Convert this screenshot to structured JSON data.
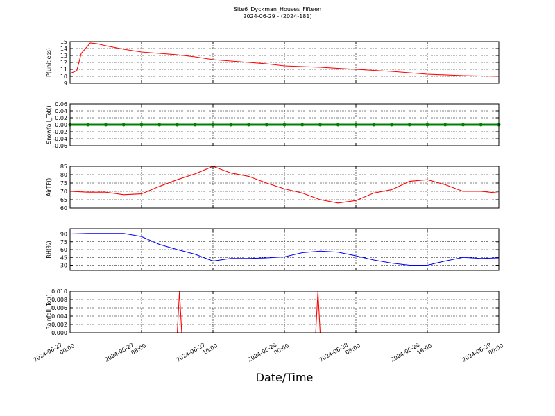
{
  "figure": {
    "title": "Site6_Dyckman_Houses_Fifteen",
    "subtitle": "2024-06-29 - (2024-181)",
    "xlabel": "Date/Time"
  },
  "chart_data": [
    {
      "type": "line",
      "ylabel": "P(unitless)",
      "xlim": [
        "2024-06-27 00:00",
        "2024-06-29 00:00"
      ],
      "xticks": [
        "2024-06-27 00:00",
        "2024-06-27 08:00",
        "2024-06-27 16:00",
        "2024-06-28 00:00",
        "2024-06-28 08:00",
        "2024-06-28 16:00",
        "2024-06-29 00:00"
      ],
      "ylim": [
        9,
        15
      ],
      "yticks": [
        9,
        10,
        11,
        12,
        13,
        14,
        15
      ],
      "grid": true,
      "x": [
        "2024-06-27 00:00",
        "2024-06-27 00:45",
        "2024-06-27 01:15",
        "2024-06-27 02:00",
        "2024-06-27 02:15",
        "2024-06-27 03:00",
        "2024-06-27 04:00",
        "2024-06-27 06:00",
        "2024-06-27 08:00",
        "2024-06-27 10:00",
        "2024-06-27 12:00",
        "2024-06-27 14:00",
        "2024-06-27 16:00",
        "2024-06-27 18:00",
        "2024-06-27 20:00",
        "2024-06-27 22:00",
        "2024-06-28 00:00",
        "2024-06-28 04:00",
        "2024-06-28 08:00",
        "2024-06-28 12:00",
        "2024-06-28 16:00",
        "2024-06-28 20:00",
        "2024-06-29 00:00"
      ],
      "series": [
        {
          "name": "P",
          "color": "#ff0000",
          "values": [
            10.4,
            10.8,
            13.3,
            14.4,
            14.8,
            14.7,
            14.4,
            13.9,
            13.5,
            13.3,
            13.1,
            12.8,
            12.4,
            12.2,
            12.0,
            11.8,
            11.5,
            11.3,
            11.0,
            10.7,
            10.3,
            10.1,
            10.0
          ]
        }
      ]
    },
    {
      "type": "line",
      "ylabel": "Snowfall_Tot()",
      "xlim": [
        "2024-06-27 00:00",
        "2024-06-29 00:00"
      ],
      "xticks": [
        "2024-06-27 00:00",
        "2024-06-27 08:00",
        "2024-06-27 16:00",
        "2024-06-28 00:00",
        "2024-06-28 08:00",
        "2024-06-28 16:00",
        "2024-06-29 00:00"
      ],
      "ylim": [
        -0.06,
        0.06
      ],
      "yticks": [
        -0.06,
        -0.04,
        -0.02,
        {
          "value": 0,
          "label": "0.00"
        },
        0.02,
        0.04,
        0.06
      ],
      "grid": true,
      "markers": true,
      "x": [
        "2024-06-27 00:00",
        "2024-06-27 02:00",
        "2024-06-27 04:00",
        "2024-06-27 06:00",
        "2024-06-27 08:00",
        "2024-06-27 10:00",
        "2024-06-27 12:00",
        "2024-06-27 14:00",
        "2024-06-27 16:00",
        "2024-06-27 18:00",
        "2024-06-27 20:00",
        "2024-06-27 22:00",
        "2024-06-28 00:00",
        "2024-06-28 02:00",
        "2024-06-28 04:00",
        "2024-06-28 06:00",
        "2024-06-28 08:00",
        "2024-06-28 10:00",
        "2024-06-28 12:00",
        "2024-06-28 14:00",
        "2024-06-28 16:00",
        "2024-06-28 18:00",
        "2024-06-28 20:00",
        "2024-06-28 22:00",
        "2024-06-29 00:00"
      ],
      "series": [
        {
          "name": "Snowfall_Tot",
          "color": "#008000",
          "values": [
            0,
            0,
            0,
            0,
            0,
            0,
            0,
            0,
            0,
            0,
            0,
            0,
            0,
            0,
            0,
            0,
            0,
            0,
            0,
            0,
            0,
            0,
            0,
            0,
            0
          ]
        }
      ]
    },
    {
      "type": "line",
      "ylabel": "AirTF()",
      "xlim": [
        "2024-06-27 00:00",
        "2024-06-29 00:00"
      ],
      "xticks": [
        "2024-06-27 00:00",
        "2024-06-27 08:00",
        "2024-06-27 16:00",
        "2024-06-28 00:00",
        "2024-06-28 08:00",
        "2024-06-28 16:00",
        "2024-06-29 00:00"
      ],
      "ylim": [
        60,
        85
      ],
      "yticks": [
        60,
        65,
        70,
        75,
        80,
        85
      ],
      "grid": true,
      "x": [
        "2024-06-27 00:00",
        "2024-06-27 02:00",
        "2024-06-27 04:00",
        "2024-06-27 06:00",
        "2024-06-27 08:00",
        "2024-06-27 10:00",
        "2024-06-27 12:00",
        "2024-06-27 14:00",
        "2024-06-27 16:00",
        "2024-06-27 18:00",
        "2024-06-27 20:00",
        "2024-06-27 22:00",
        "2024-06-28 00:00",
        "2024-06-28 02:00",
        "2024-06-28 04:00",
        "2024-06-28 06:00",
        "2024-06-28 08:00",
        "2024-06-28 10:00",
        "2024-06-28 12:00",
        "2024-06-28 14:00",
        "2024-06-28 16:00",
        "2024-06-28 18:00",
        "2024-06-28 20:00",
        "2024-06-28 22:00",
        "2024-06-29 00:00"
      ],
      "series": [
        {
          "name": "AirTF",
          "color": "#ff0000",
          "values": [
            70,
            69.5,
            69.5,
            68,
            68.5,
            73,
            77,
            80.5,
            85,
            81,
            79,
            75,
            71.5,
            69,
            65,
            63,
            64.5,
            69,
            71,
            76,
            77,
            74,
            70,
            70,
            69
          ]
        }
      ]
    },
    {
      "type": "line",
      "ylabel": "RH(%)",
      "xlim": [
        "2024-06-27 00:00",
        "2024-06-29 00:00"
      ],
      "xticks": [
        "2024-06-27 00:00",
        "2024-06-27 08:00",
        "2024-06-27 16:00",
        "2024-06-28 00:00",
        "2024-06-28 08:00",
        "2024-06-28 16:00",
        "2024-06-29 00:00"
      ],
      "ylim": [
        20,
        100
      ],
      "yticks": [
        30,
        45,
        60,
        75,
        90
      ],
      "grid": true,
      "x": [
        "2024-06-27 00:00",
        "2024-06-27 02:00",
        "2024-06-27 04:00",
        "2024-06-27 06:00",
        "2024-06-27 08:00",
        "2024-06-27 10:00",
        "2024-06-27 12:00",
        "2024-06-27 14:00",
        "2024-06-27 16:00",
        "2024-06-27 18:00",
        "2024-06-27 20:00",
        "2024-06-27 22:00",
        "2024-06-28 00:00",
        "2024-06-28 02:00",
        "2024-06-28 04:00",
        "2024-06-28 06:00",
        "2024-06-28 08:00",
        "2024-06-28 10:00",
        "2024-06-28 12:00",
        "2024-06-28 14:00",
        "2024-06-28 16:00",
        "2024-06-28 18:00",
        "2024-06-28 20:00",
        "2024-06-28 22:00",
        "2024-06-29 00:00"
      ],
      "series": [
        {
          "name": "RH",
          "color": "#0000ff",
          "values": [
            90,
            91,
            91,
            91,
            85,
            70,
            60,
            51,
            38,
            43,
            43,
            44,
            46,
            54,
            57,
            55,
            48,
            40,
            34,
            30,
            30,
            38,
            45,
            43,
            44
          ]
        }
      ]
    },
    {
      "type": "line",
      "ylabel": "Rainfall_Tot()",
      "xlim": [
        "2024-06-27 00:00",
        "2024-06-29 00:00"
      ],
      "xticks": [
        {
          "value": "2024-06-27 00:00",
          "label": "2024-06-27 00:00"
        },
        {
          "value": "2024-06-27 08:00",
          "label": "2024-06-27 08:00"
        },
        {
          "value": "2024-06-27 16:00",
          "label": "2024-06-27 16:00"
        },
        {
          "value": "2024-06-28 00:00",
          "label": "2024-06-28 00:00"
        },
        {
          "value": "2024-06-28 08:00",
          "label": "2024-06-28 08:00"
        },
        {
          "value": "2024-06-28 16:00",
          "label": "2024-06-28 16:00"
        },
        {
          "value": "2024-06-29 00:00",
          "label": "2024-06-29 00:00"
        }
      ],
      "show_xtick_labels": true,
      "ylim": [
        0,
        0.01
      ],
      "yticks": [
        {
          "value": 0,
          "label": "0.000"
        },
        {
          "value": 0.002,
          "label": "0.002"
        },
        {
          "value": 0.004,
          "label": "0.004"
        },
        {
          "value": 0.006,
          "label": "0.006"
        },
        {
          "value": 0.008,
          "label": "0.008"
        },
        {
          "value": 0.01,
          "label": "0.010"
        }
      ],
      "grid": true,
      "x": [
        "2024-06-27 00:00",
        "2024-06-27 12:00",
        "2024-06-27 12:15",
        "2024-06-27 12:30",
        "2024-06-28 03:30",
        "2024-06-28 03:45",
        "2024-06-28 04:00",
        "2024-06-29 00:00"
      ],
      "series": [
        {
          "name": "Rainfall_Tot",
          "color": "#ff0000",
          "values": [
            0,
            0,
            0.01,
            0,
            0,
            0.01,
            0,
            0
          ]
        }
      ]
    }
  ]
}
